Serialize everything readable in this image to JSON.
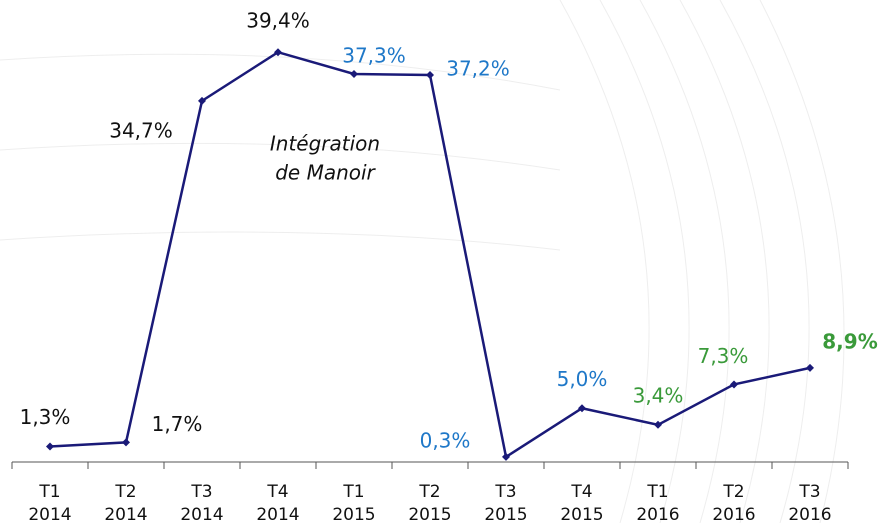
{
  "chart_data": {
    "type": "line",
    "categories": [
      [
        "T1",
        "2014"
      ],
      [
        "T2",
        "2014"
      ],
      [
        "T3",
        "2014"
      ],
      [
        "T4",
        "2014"
      ],
      [
        "T1",
        "2015"
      ],
      [
        "T2",
        "2015"
      ],
      [
        "T3",
        "2015"
      ],
      [
        "T4",
        "2015"
      ],
      [
        "T1",
        "2016"
      ],
      [
        "T2",
        "2016"
      ],
      [
        "T3",
        "2016"
      ]
    ],
    "values": [
      1.3,
      1.7,
      34.7,
      39.4,
      37.3,
      37.2,
      0.3,
      5.0,
      3.4,
      7.3,
      8.9
    ],
    "value_labels": [
      "1,3%",
      "1,7%",
      "34,7%",
      "39,4%",
      "37,3%",
      "37,2%",
      "0,3%",
      "5,0%",
      "3,4%",
      "7,3%",
      "8,9%"
    ],
    "value_label_colors": [
      "#111111",
      "#111111",
      "#111111",
      "#111111",
      "#1f78c8",
      "#1f78c8",
      "#1f78c8",
      "#1f78c8",
      "#3a9a3a",
      "#3a9a3a",
      "#3a9a3a"
    ],
    "value_label_bold": [
      false,
      false,
      false,
      false,
      false,
      false,
      false,
      false,
      false,
      false,
      true
    ],
    "color": "#1a1a78",
    "ylim": [
      0,
      40
    ],
    "annotation": [
      "Intégration",
      "de Manoir"
    ]
  }
}
